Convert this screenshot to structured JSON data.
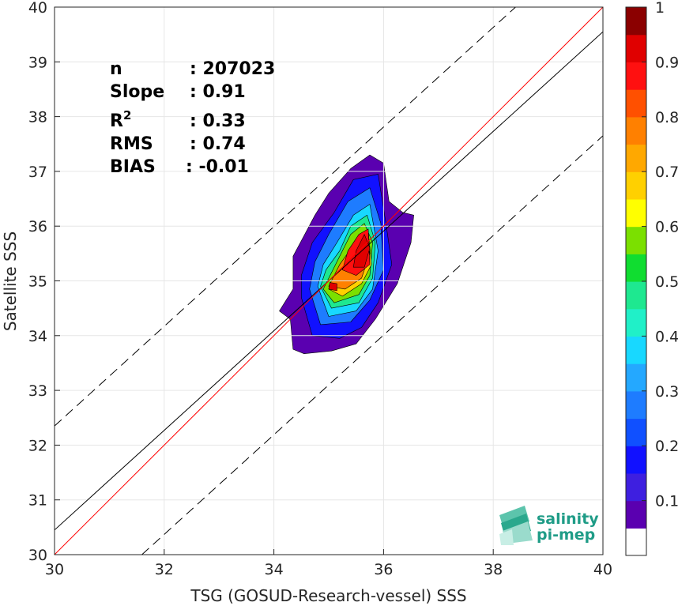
{
  "chart_data": {
    "type": "contour-scatter",
    "xlabel": "TSG (GOSUD-Research-vessel) SSS",
    "ylabel": "Satellite SSS",
    "xlim": [
      30,
      40
    ],
    "ylim": [
      30,
      40
    ],
    "xticks": [
      30,
      32,
      34,
      36,
      38,
      40
    ],
    "yticks": [
      30,
      31,
      32,
      33,
      34,
      35,
      36,
      37,
      38,
      39,
      40
    ],
    "grid": true,
    "stats": [
      {
        "label": "n",
        "value": ": 207023"
      },
      {
        "label": "Slope",
        "value": ": 0.91"
      },
      {
        "label": "R",
        "sup": "2",
        "value": ": 0.33"
      },
      {
        "label": "RMS",
        "value": ": 0.74"
      },
      {
        "label": "BIAS",
        "value": ": -0.01"
      }
    ],
    "lines": {
      "identity": {
        "color": "#ff0000",
        "slope": 1,
        "intercept": 0
      },
      "regression": {
        "color": "#000000",
        "slope": 0.91,
        "intercept": 3.15
      },
      "upper_envelope": {
        "color": "#000000",
        "dashed": true,
        "slope": 0.91,
        "intercept": 5.05
      },
      "lower_envelope": {
        "color": "#000000",
        "dashed": true,
        "slope": 0.91,
        "intercept": 1.25
      }
    },
    "density_contours": {
      "peak": {
        "x": 35.65,
        "y": 35.5
      },
      "secondary_peak": {
        "x": 35.08,
        "y": 34.88
      },
      "levels": [
        0.05,
        0.1,
        0.15,
        0.2,
        0.25,
        0.3,
        0.35,
        0.4,
        0.45,
        0.5,
        0.55,
        0.6,
        0.65,
        0.7,
        0.75,
        0.8,
        0.85,
        0.9,
        0.95
      ]
    },
    "colorbar": {
      "range": [
        0,
        1
      ],
      "ticks": [
        "0.1",
        "0.2",
        "0.3",
        "0.4",
        "0.5",
        "0.6",
        "0.7",
        "0.8",
        "0.9",
        "1"
      ],
      "colors": [
        "#ffffff",
        "#5a00b0",
        "#3e1fe0",
        "#1111ff",
        "#1050ff",
        "#1e7cff",
        "#24a8ff",
        "#18d8ff",
        "#20f0c8",
        "#1ee890",
        "#10dd30",
        "#7be000",
        "#ffff00",
        "#ffd000",
        "#ffa800",
        "#ff8000",
        "#ff5000",
        "#ff1010",
        "#e00000",
        "#8b0000"
      ]
    }
  },
  "logo": {
    "line1": "salinity",
    "line2": "pi-mep",
    "accent": "#1f9c87"
  }
}
